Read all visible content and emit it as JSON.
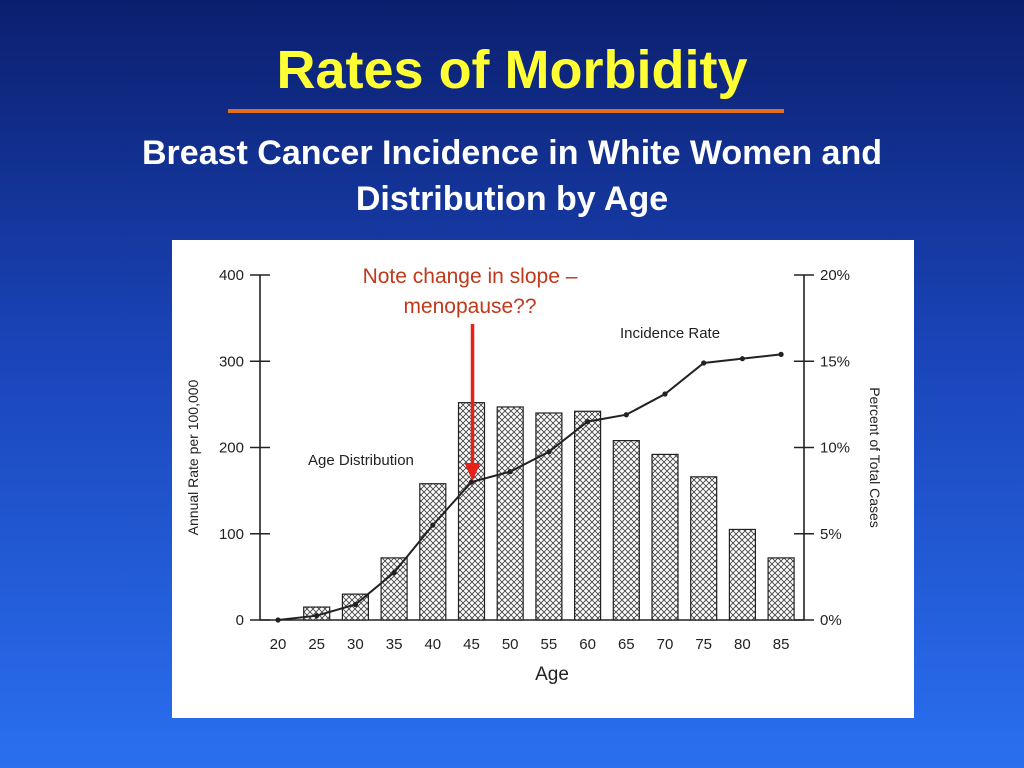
{
  "slide": {
    "title": "Rates of Morbidity",
    "subtitle": "Breast Cancer Incidence in White Women and Distribution by Age",
    "note_line1": "Note change in slope –",
    "note_line2": "menopause??"
  },
  "colors": {
    "title": "#ffff33",
    "underline": "#e07020",
    "subtitle": "#ffffff",
    "note": "#c0391a",
    "arrow": "#e8201a",
    "ink": "#222222"
  },
  "chart_data": {
    "type": "bar",
    "xlabel": "Age",
    "ylabel_left": "Annual Rate per 100,000",
    "ylabel_right": "Percent of Total Cases",
    "categories": [
      "20",
      "25",
      "30",
      "35",
      "40",
      "45",
      "50",
      "55",
      "60",
      "65",
      "70",
      "75",
      "80",
      "85"
    ],
    "left_ticks": [
      "0",
      "100",
      "200",
      "300",
      "400"
    ],
    "right_ticks": [
      "0%",
      "5%",
      "10%",
      "15%",
      "20%"
    ],
    "ylim_left": [
      0,
      400
    ],
    "ylim_right": [
      0,
      20
    ],
    "series": [
      {
        "name": "Age Distribution",
        "kind": "bar",
        "axis": "left",
        "values": [
          0,
          15,
          30,
          72,
          158,
          252,
          247,
          240,
          242,
          208,
          192,
          166,
          105,
          72
        ]
      },
      {
        "name": "Incidence Rate",
        "kind": "line",
        "axis": "left",
        "values": [
          0,
          5,
          18,
          55,
          110,
          160,
          172,
          195,
          230,
          238,
          262,
          298,
          303,
          308
        ]
      }
    ],
    "annotation": {
      "category": "45",
      "value": 160
    }
  }
}
